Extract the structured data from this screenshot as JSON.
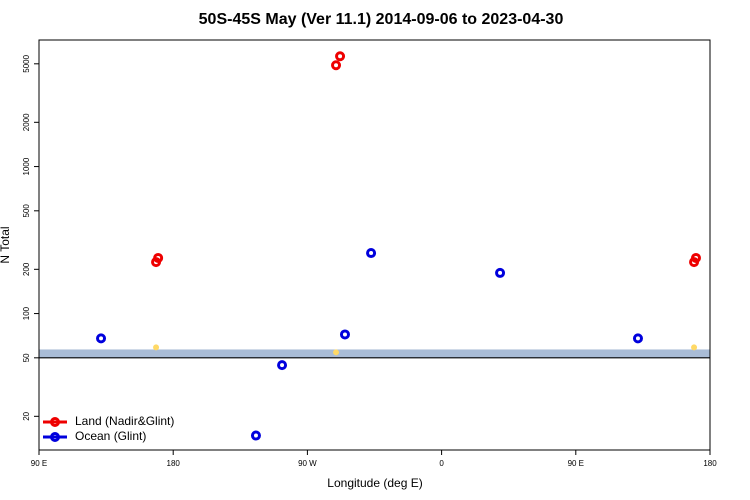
{
  "chart_data": {
    "type": "scatter",
    "title": "50S-45S May (Ver 11.1)   2014-09-06 to 2023-04-30",
    "x_label": "Longitude (deg E)",
    "y_label": "N Total",
    "log_y": true,
    "legend": "bottom-left",
    "xlim": [
      90,
      540
    ],
    "xticks": [
      {
        "value": 90,
        "label": "90 E"
      },
      180,
      {
        "value": 270,
        "label": "90 W"
      },
      {
        "value": 360,
        "label": "0"
      },
      {
        "value": 450,
        "label": "90 E"
      },
      {
        "value": 540,
        "label": "180"
      }
    ],
    "ylim": [
      11.8,
      7260
    ],
    "yticks": [
      20,
      50,
      100,
      200,
      500,
      1000,
      2000,
      5000
    ],
    "band": [
      50,
      57
    ],
    "band_color": "#a9bcd6",
    "hline": 50,
    "series": [
      {
        "name": "Land (Nadir&Glint)",
        "color": "#ee0000",
        "x": [
          168.5,
          169.9,
          289.2,
          291.9,
          529.3,
          530.6
        ],
        "values": [
          224,
          239,
          4890,
          5630,
          224,
          239
        ]
      },
      {
        "name": "Ocean (Glint)",
        "color": "#0000dd",
        "x": [
          131.6,
          235.5,
          253,
          295.2,
          312.7,
          399.2,
          491.7
        ],
        "values": [
          67.8,
          14.8,
          44.6,
          72.1,
          258,
          189,
          67.8
        ]
      },
      {
        "color": "#ffd966",
        "x": [
          168.5,
          289.2,
          529.3
        ],
        "values": [
          58.9,
          54.5,
          58.9
        ]
      }
    ]
  }
}
